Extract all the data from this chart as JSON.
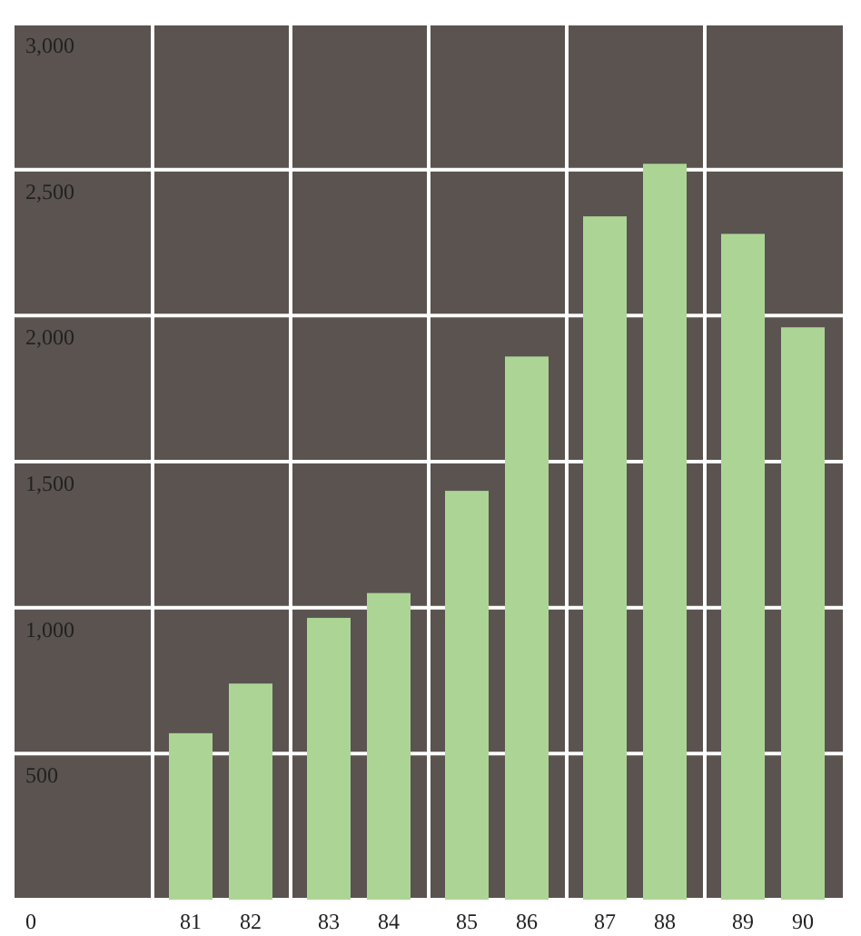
{
  "chart_data": {
    "type": "bar",
    "categories": [
      "81",
      "82",
      "83",
      "84",
      "85",
      "86",
      "87",
      "88",
      "89",
      "90"
    ],
    "values": [
      570,
      740,
      965,
      1050,
      1400,
      1860,
      2340,
      2520,
      2280,
      1960
    ],
    "color": "#acd595",
    "ylim": [
      0,
      3000
    ],
    "yticks": [
      {
        "value": 0,
        "label": "0"
      },
      {
        "value": 500,
        "label": "500"
      },
      {
        "value": 1000,
        "label": "1,000"
      },
      {
        "value": 1500,
        "label": "1,500"
      },
      {
        "value": 2000,
        "label": "2,000"
      },
      {
        "value": 2500,
        "label": "2,500"
      },
      {
        "value": 3000,
        "label": "3,000"
      }
    ],
    "grid": true
  }
}
